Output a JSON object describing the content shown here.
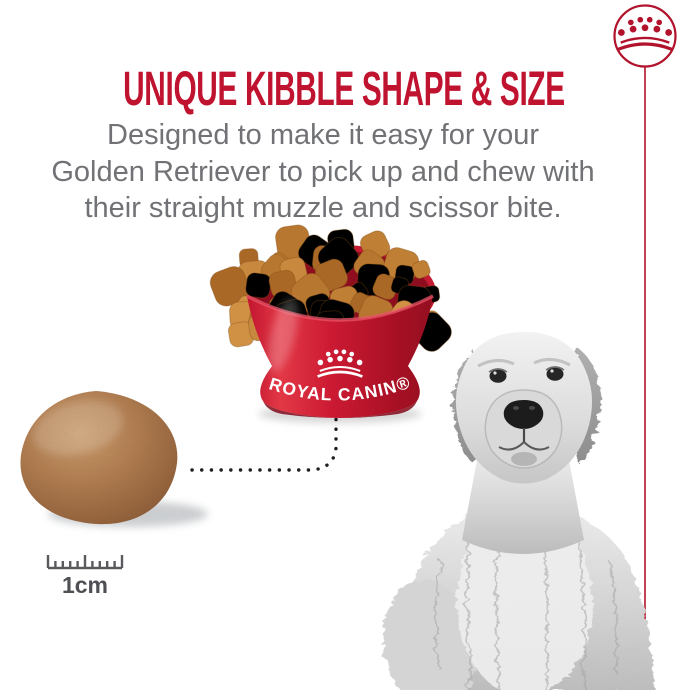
{
  "colors": {
    "brand_red": "#c01330",
    "bowl_red_light": "#e23845",
    "bowl_red_dark": "#9a0e22",
    "subtitle_gray": "#717275",
    "scale_gray": "#4f5054",
    "kibble_light": "#cfa070",
    "kibble_dark": "#7d4f2e"
  },
  "logo": {
    "icon": "royal-canin-crown-icon"
  },
  "headline": {
    "title": "UNIQUE KIBBLE SHAPE & SIZE"
  },
  "subtitle": {
    "lines": [
      "Designed to make it easy for your",
      "Golden Retriever to pick up and chew with",
      "their straight muzzle and scissor bite."
    ]
  },
  "bowl": {
    "brand_text": "ROYAL CANIN®"
  },
  "scale_bar": {
    "label": "1cm"
  },
  "illustration": {
    "dog": "golden-retriever-grayscale-photo",
    "kibble": "enlarged-kibble-piece",
    "leader": "dotted-connector-line"
  }
}
